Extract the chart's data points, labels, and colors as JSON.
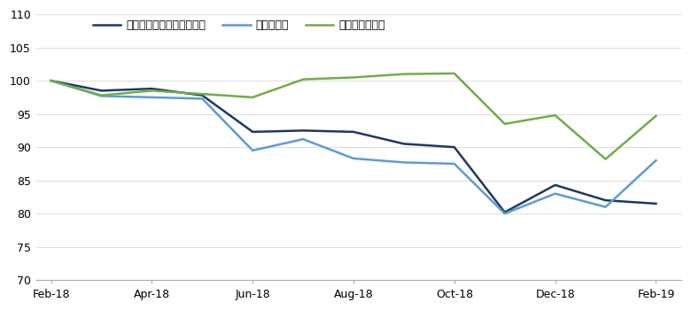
{
  "series": [
    {
      "name": "アジア株式（日本を除く）",
      "color": "#1f3864",
      "x": [
        0,
        1,
        2,
        3,
        4,
        5,
        6,
        7,
        8,
        9,
        10,
        11,
        12
      ],
      "y": [
        100,
        98.5,
        98.8,
        97.8,
        92.3,
        92.5,
        92.3,
        90.5,
        90.0,
        80.2,
        84.3,
        82.0,
        81.5
      ]
    },
    {
      "name": "新興国株式",
      "color": "#5b9bd5",
      "x": [
        0,
        1,
        2,
        3,
        4,
        5,
        6,
        7,
        8,
        9,
        10,
        11,
        12
      ],
      "y": [
        100,
        97.7,
        97.5,
        97.3,
        89.5,
        91.2,
        88.3,
        87.7,
        87.5,
        80.0,
        83.0,
        81.0,
        88.0
      ]
    },
    {
      "name": "グローバル株式",
      "color": "#70ad47",
      "x": [
        0,
        1,
        2,
        3,
        4,
        5,
        6,
        7,
        8,
        9,
        10,
        11,
        12
      ],
      "y": [
        100,
        97.8,
        98.5,
        98.0,
        97.5,
        100.2,
        100.5,
        101.0,
        101.1,
        93.5,
        94.8,
        88.2,
        94.7
      ]
    }
  ],
  "xtick_labels": [
    "Feb-18",
    "Apr-18",
    "Jun-18",
    "Aug-18",
    "Oct-18",
    "Dec-18",
    "Feb-19"
  ],
  "xtick_positions": [
    0,
    2,
    4,
    6,
    8,
    10,
    12
  ],
  "ylim": [
    70,
    110
  ],
  "ytick_values": [
    70,
    75,
    80,
    85,
    90,
    95,
    100,
    105,
    110
  ],
  "background_color": "#ffffff",
  "legend_fontsize": 9,
  "tick_fontsize": 9,
  "linewidth": 1.8
}
